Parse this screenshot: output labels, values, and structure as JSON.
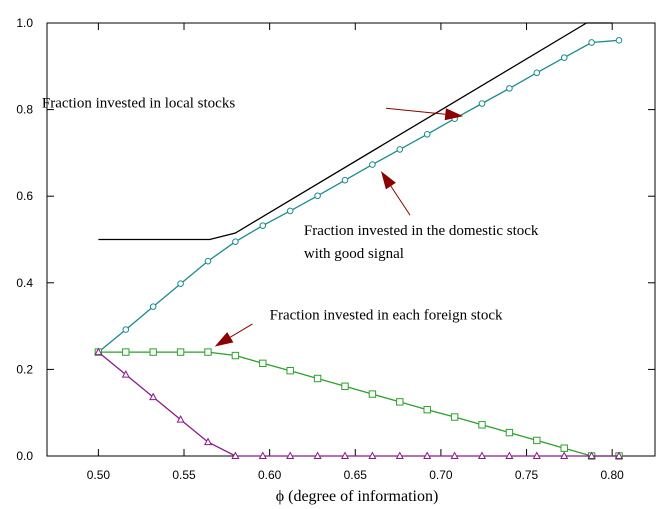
{
  "chart_data": {
    "type": "line",
    "xlabel": "ϕ (degree of information)",
    "ylabel": "",
    "xlim": [
      0.47,
      0.825
    ],
    "ylim": [
      0,
      1.0
    ],
    "xticks": [
      "0.50",
      "0.55",
      "0.60",
      "0.65",
      "0.70",
      "0.75",
      "0.80"
    ],
    "yticks": [
      "0.0",
      "0.2",
      "0.4",
      "0.6",
      "0.8",
      "1.0"
    ],
    "grid": false,
    "series": [
      {
        "color": "#000000",
        "marker": "none",
        "x": [
          0.5,
          0.565,
          0.58,
          0.785,
          0.8
        ],
        "y": [
          0.5,
          0.5,
          0.515,
          1.0,
          1.0
        ]
      },
      {
        "color": "#1a8c8c",
        "marker": "circle",
        "x": [
          0.5,
          0.516,
          0.532,
          0.548,
          0.564,
          0.58,
          0.596,
          0.612,
          0.628,
          0.644,
          0.66,
          0.676,
          0.692,
          0.708,
          0.724,
          0.74,
          0.756,
          0.772,
          0.788,
          0.804
        ],
        "y": [
          0.24,
          0.292,
          0.345,
          0.398,
          0.45,
          0.495,
          0.532,
          0.566,
          0.601,
          0.637,
          0.673,
          0.708,
          0.743,
          0.779,
          0.814,
          0.849,
          0.885,
          0.92,
          0.955,
          0.96
        ]
      },
      {
        "color": "#2ca02c",
        "marker": "square",
        "x": [
          0.5,
          0.516,
          0.532,
          0.548,
          0.564,
          0.58,
          0.596,
          0.612,
          0.628,
          0.644,
          0.66,
          0.676,
          0.692,
          0.708,
          0.724,
          0.74,
          0.756,
          0.772,
          0.788,
          0.804
        ],
        "y": [
          0.24,
          0.24,
          0.24,
          0.24,
          0.24,
          0.232,
          0.214,
          0.197,
          0.179,
          0.161,
          0.143,
          0.125,
          0.107,
          0.09,
          0.072,
          0.054,
          0.036,
          0.018,
          0.0,
          0.0
        ]
      },
      {
        "color": "#8b1a8b",
        "marker": "triangle",
        "x": [
          0.5,
          0.516,
          0.532,
          0.548,
          0.564,
          0.58,
          0.596,
          0.612,
          0.628,
          0.644,
          0.66,
          0.676,
          0.692,
          0.708,
          0.724,
          0.74,
          0.756,
          0.772,
          0.788,
          0.804
        ],
        "y": [
          0.24,
          0.188,
          0.136,
          0.084,
          0.032,
          0.0,
          0.0,
          0.0,
          0.0,
          0.0,
          0.0,
          0.0,
          0.0,
          0.0,
          0.0,
          0.0,
          0.0,
          0.0,
          0.0,
          0.0
        ]
      }
    ],
    "annotations": [
      {
        "lines": [
          "Fraction invested in local stocks"
        ],
        "text_at": [
          0.467,
          0.805
        ],
        "arrow_from": [
          0.668,
          0.803
        ],
        "arrow_to": [
          0.713,
          0.785
        ]
      },
      {
        "lines": [
          "Fraction invested in the domestic stock",
          "with good signal"
        ],
        "text_at": [
          0.62,
          0.51
        ],
        "arrow_from": [
          0.682,
          0.556
        ],
        "arrow_to": [
          0.665,
          0.658
        ]
      },
      {
        "lines": [
          "Fraction invested in each foreign stock"
        ],
        "text_at": [
          0.6,
          0.315
        ],
        "arrow_from": [
          0.59,
          0.305
        ],
        "arrow_to": [
          0.568,
          0.253
        ]
      }
    ],
    "arrow_color": "#8b0000"
  }
}
